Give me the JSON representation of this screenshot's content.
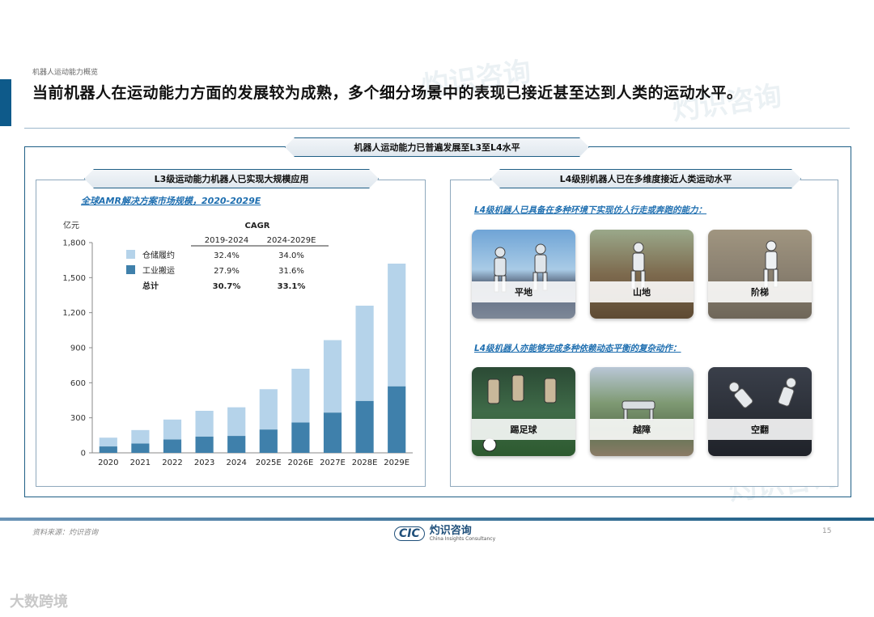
{
  "section_tag": "机器人运动能力概览",
  "headline": "当前机器人在运动能力方面的发展较为成熟，多个细分场景中的表现已接近甚至达到人类的运动水平。",
  "top_banner": "机器人运动能力已普遍发展至L3至L4水平",
  "left_panel": {
    "banner": "L3级运动能力机器人已实现大规模应用",
    "chart_title": "全球AMR解决方案市场规模，2020-2029E"
  },
  "right_panel": {
    "banner": "L4级别机器人已在多维度接近人类运动水平",
    "subtitle1": "L4级机器人已具备在多种环境下实现仿人行走或奔跑的能力：",
    "subtitle2": "L4级机器人亦能够完成多种依赖动态平衡的复杂动作：",
    "photos_row1": [
      "平地",
      "山地",
      "阶梯"
    ],
    "photos_row2": [
      "踢足球",
      "越障",
      "空翻"
    ]
  },
  "chart_data": {
    "type": "bar",
    "stacked": true,
    "unit_label": "亿元",
    "categories": [
      "2020",
      "2021",
      "2022",
      "2023",
      "2024",
      "2025E",
      "2026E",
      "2027E",
      "2028E",
      "2029E"
    ],
    "series": [
      {
        "name": "工业搬运",
        "color": "#3f80ab",
        "values": [
          55,
          80,
          115,
          140,
          145,
          200,
          260,
          345,
          445,
          570
        ]
      },
      {
        "name": "仓储履约",
        "color": "#b5d3ea",
        "values": [
          75,
          115,
          170,
          220,
          245,
          345,
          460,
          620,
          815,
          1050
        ]
      }
    ],
    "ylim": [
      0,
      1800
    ],
    "yticks": [
      "0",
      "300",
      "600",
      "900",
      "1,200",
      "1,500",
      "1,800"
    ],
    "cagr_table": {
      "title": "CAGR",
      "columns": [
        "2019-2024",
        "2024-2029E"
      ],
      "rows": [
        {
          "label": "仓储履约",
          "values": [
            "32.4%",
            "34.0%"
          ],
          "color": "#b5d3ea"
        },
        {
          "label": "工业搬运",
          "values": [
            "27.9%",
            "31.6%"
          ],
          "color": "#3f80ab"
        },
        {
          "label": "总计",
          "values": [
            "30.7%",
            "33.1%"
          ],
          "color": ""
        }
      ]
    }
  },
  "footer": {
    "source": "资料来源：灼识咨询",
    "logo_cic": "CIC",
    "logo_cn": "灼识咨询",
    "logo_en": "China Insights Consultancy",
    "page_number": "15",
    "watermark_brand": "大数跨境"
  }
}
